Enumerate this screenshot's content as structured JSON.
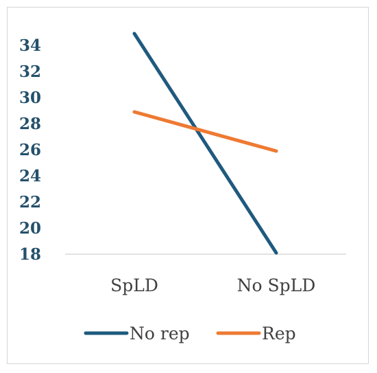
{
  "chart_data": {
    "type": "line",
    "categories": [
      "SpLD",
      "No SpLD"
    ],
    "ylim": [
      18,
      35
    ],
    "yticks": [
      18,
      20,
      22,
      24,
      26,
      28,
      30,
      32,
      34
    ],
    "grid": false,
    "legend_position": "bottom",
    "series": [
      {
        "name": "No rep",
        "values": [
          34.9,
          18.1
        ],
        "color": "#1f5a7e"
      },
      {
        "name": "Rep",
        "values": [
          28.9,
          25.9
        ],
        "color": "#ee7a33"
      }
    ]
  }
}
